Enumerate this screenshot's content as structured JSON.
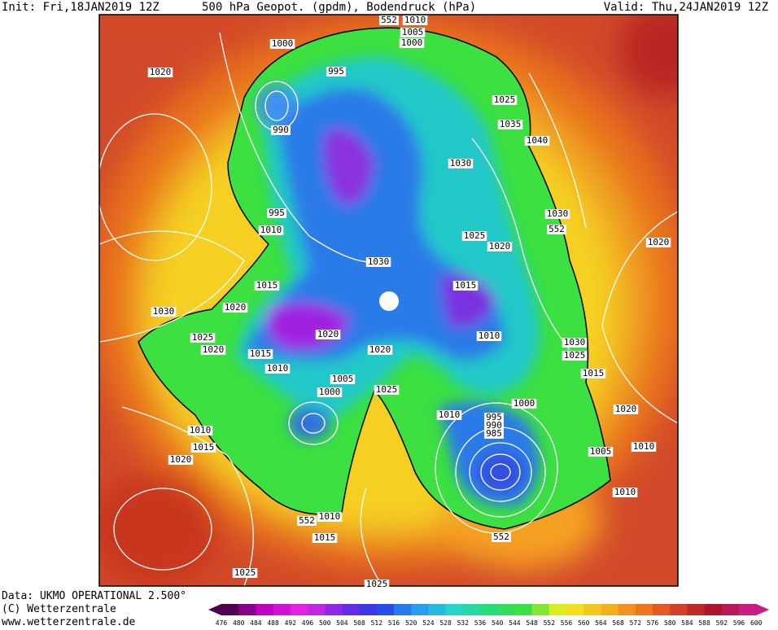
{
  "header": {
    "init": "Init: Fri,18JAN2019 12Z",
    "title": "500 hPa Geopot. (gpdm), Bodendruck (hPa)",
    "valid": "Valid: Thu,24JAN2019 12Z"
  },
  "footer": {
    "data": "Data: UKMO OPERATIONAL 2.500°",
    "copyright": "(C) Wetterzentrale",
    "url": "www.wetterzentrale.de"
  },
  "map": {
    "labels": [
      552,
      1010,
      1005,
      1000,
      1000,
      1020,
      995,
      990,
      1025,
      1035,
      1040,
      1030,
      995,
      1010,
      1030,
      552,
      1025,
      1020,
      1020,
      1030,
      1015,
      1015,
      1020,
      1030,
      1020,
      1010,
      1025,
      1020,
      1015,
      1020,
      1030,
      1025,
      1010,
      1015,
      1005,
      1000,
      1025,
      1000,
      1010,
      1020,
      995,
      990,
      985,
      1010,
      1015,
      1010,
      1005,
      1020,
      1010,
      552,
      1010,
      1015,
      552,
      1025,
      1025
    ]
  },
  "colorbar": {
    "labels": [
      476,
      480,
      484,
      488,
      492,
      496,
      500,
      504,
      508,
      512,
      516,
      520,
      524,
      528,
      532,
      536,
      540,
      544,
      548,
      552,
      556,
      560,
      564,
      568,
      572,
      576,
      580,
      584,
      588,
      592,
      596,
      600
    ]
  }
}
